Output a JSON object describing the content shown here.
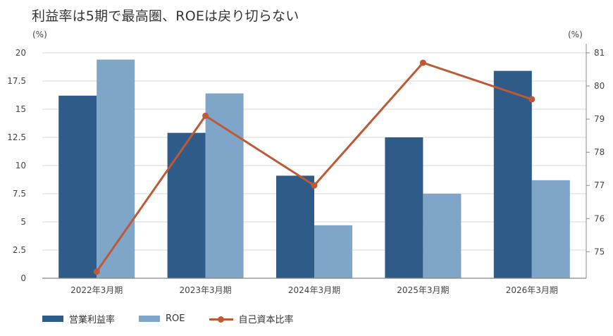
{
  "title": "利益率は5期で最高圏、ROEは戻り切らない",
  "left_unit": "(%)",
  "right_unit": "(%)",
  "colors": {
    "bar1": "#2e5b87",
    "bar2": "#7fa5c9",
    "line": "#bc5a36"
  },
  "chart_data": {
    "type": "bar",
    "categories": [
      "2022年3月期",
      "2023年3月期",
      "2024年3月期",
      "2025年3月期",
      "2026年3月期"
    ],
    "series": [
      {
        "name": "営業利益率",
        "type": "bar",
        "axis": "left",
        "values": [
          16.2,
          12.9,
          9.1,
          12.5,
          18.4
        ]
      },
      {
        "name": "ROE",
        "type": "bar",
        "axis": "left",
        "values": [
          19.4,
          16.4,
          4.7,
          7.5,
          8.7
        ]
      },
      {
        "name": "自己資本比率",
        "type": "line",
        "axis": "right",
        "values": [
          74.4,
          79.1,
          77.0,
          80.7,
          79.6
        ]
      }
    ],
    "left_axis": {
      "min": 0,
      "max": 20,
      "ticks": [
        "0",
        "2.5",
        "5",
        "7.5",
        "10",
        "12.5",
        "15",
        "17.5",
        "20"
      ]
    },
    "right_axis": {
      "min": 74.2,
      "max": 81,
      "ticks": [
        "75",
        "76",
        "77",
        "78",
        "79",
        "80",
        "81"
      ]
    },
    "grid": true,
    "legend_position": "bottom-left"
  }
}
